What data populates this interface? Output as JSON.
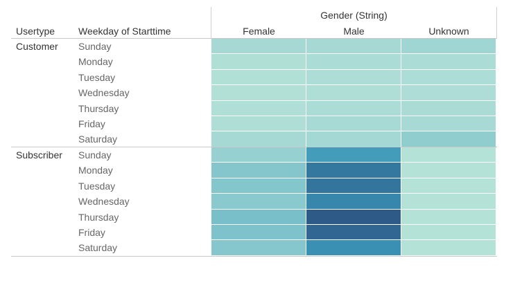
{
  "chart_data": {
    "type": "heatmap",
    "column_group_title": "Gender (String)",
    "row_headers": [
      "Usertype",
      "Weekday of Starttime"
    ],
    "columns": [
      "Female",
      "Male",
      "Unknown"
    ],
    "groups": [
      {
        "usertype": "Customer",
        "rows": [
          {
            "weekday": "Sunday",
            "values": [
              0.22,
              0.22,
              0.28
            ]
          },
          {
            "weekday": "Monday",
            "values": [
              0.1,
              0.16,
              0.16
            ]
          },
          {
            "weekday": "Tuesday",
            "values": [
              0.09,
              0.14,
              0.15
            ]
          },
          {
            "weekday": "Wednesday",
            "values": [
              0.08,
              0.13,
              0.14
            ]
          },
          {
            "weekday": "Thursday",
            "values": [
              0.11,
              0.16,
              0.17
            ]
          },
          {
            "weekday": "Friday",
            "values": [
              0.13,
              0.2,
              0.21
            ]
          },
          {
            "weekday": "Saturday",
            "values": [
              0.22,
              0.25,
              0.38
            ]
          }
        ]
      },
      {
        "usertype": "Subscriber",
        "rows": [
          {
            "weekday": "Sunday",
            "values": [
              0.34,
              0.72,
              0.05
            ]
          },
          {
            "weekday": "Monday",
            "values": [
              0.46,
              0.88,
              0.05
            ]
          },
          {
            "weekday": "Tuesday",
            "values": [
              0.47,
              0.89,
              0.05
            ]
          },
          {
            "weekday": "Wednesday",
            "values": [
              0.42,
              0.82,
              0.05
            ]
          },
          {
            "weekday": "Thursday",
            "values": [
              0.52,
              1.0,
              0.05
            ]
          },
          {
            "weekday": "Friday",
            "values": [
              0.5,
              0.95,
              0.05
            ]
          },
          {
            "weekday": "Saturday",
            "values": [
              0.45,
              0.78,
              0.05
            ]
          }
        ]
      }
    ],
    "color_scale": [
      "#b8e4d8",
      "#a4d8d4",
      "#7ec3cb",
      "#3b97b8",
      "#2e5a88"
    ]
  }
}
